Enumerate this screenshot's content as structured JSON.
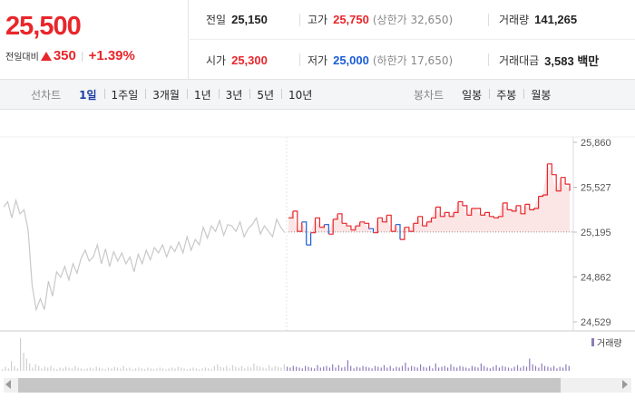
{
  "quote": {
    "price": "25,500",
    "change_label": "전일대비",
    "change_diff": "350",
    "change_rate": "+1.39%",
    "direction": "up"
  },
  "info": {
    "prev_close_label": "전일",
    "prev_close": "25,150",
    "high_label": "고가",
    "high": "25,750",
    "upper_limit": "(상한가 32,650)",
    "volume_label": "거래량",
    "volume": "141,265",
    "open_label": "시가",
    "open": "25,300",
    "low_label": "저가",
    "low": "25,000",
    "lower_limit": "(하한가 17,650)",
    "amount_label": "거래대금",
    "amount": "3,583 백만"
  },
  "line_tabs": {
    "title": "선차트",
    "items": [
      "1일",
      "1주일",
      "3개월",
      "1년",
      "3년",
      "5년",
      "10년"
    ],
    "active": "1일"
  },
  "candle_tabs": {
    "title": "봉차트",
    "items": [
      "일봉",
      "주봉",
      "월봉"
    ]
  },
  "colors": {
    "up": "#e8262b",
    "down": "#1a5cd8",
    "active_tab": "#1d3ea3",
    "prior_day": "#c8c8c8",
    "volume": "#8e7bb8"
  },
  "chart_data": {
    "type": "line",
    "y_ticks": [
      "25,860",
      "25,527",
      "25,195",
      "24,862",
      "24,529"
    ],
    "ylim": [
      24529,
      25860
    ],
    "baseline": 25195,
    "legend": "거래량",
    "series": [
      {
        "values": [
          25380,
          25420,
          25300,
          25430,
          25330,
          25360,
          25210,
          24800,
          24620,
          24700,
          24620,
          24830,
          24720,
          24900,
          24860,
          24940,
          24840,
          24960,
          24890,
          25000,
          25060,
          24980,
          25010,
          25100,
          24960,
          25070,
          24940,
          25050,
          24980,
          25040,
          24960,
          25010,
          24900,
          25030,
          24960,
          25060,
          24990,
          25080,
          25040,
          25100,
          25010,
          25090,
          25050,
          25120,
          25040,
          25160,
          25060,
          25140,
          25100,
          25230,
          25150,
          25240,
          25200,
          25280,
          25170,
          25250,
          25240,
          25200,
          25270,
          25160,
          25220,
          25250,
          25300,
          25180,
          25240,
          25200,
          25160,
          25290,
          25230,
          25190
        ]
      },
      {
        "values": [
          25300,
          25350,
          25200,
          25270,
          25100,
          25190,
          25300,
          25230,
          25250,
          25180,
          25290,
          25330,
          25260,
          25240,
          25210,
          25240,
          25270,
          25260,
          25220,
          25190,
          25300,
          25270,
          25320,
          25200,
          25250,
          25140,
          25230,
          25200,
          25260,
          25310,
          25240,
          25270,
          25300,
          25380,
          25310,
          25340,
          25310,
          25340,
          25420,
          25390,
          25320,
          25370,
          25370,
          25320,
          25340,
          25310,
          25300,
          25310,
          25410,
          25360,
          25350,
          25390,
          25330,
          25400,
          25360,
          25370,
          25460,
          25470,
          25700,
          25620,
          25500,
          25600,
          25550,
          25500
        ]
      }
    ],
    "volume": [
      20,
      50,
      30,
      120,
      60,
      30,
      400,
      220,
      150,
      90,
      40,
      80,
      60,
      30,
      50,
      40,
      60,
      30,
      20,
      40,
      30,
      50,
      40,
      30,
      60,
      40,
      30,
      20,
      30,
      40,
      30,
      50,
      40,
      30,
      20,
      40,
      30,
      50,
      40,
      30,
      60,
      30,
      40,
      20,
      30,
      40,
      30,
      20,
      40,
      30,
      20,
      30,
      40,
      30,
      20,
      30,
      40,
      30,
      50,
      40,
      30,
      20,
      30,
      40,
      30,
      20,
      30,
      40,
      30,
      20,
      60,
      80,
      50,
      40,
      60,
      30,
      70,
      50,
      40,
      60,
      30,
      50,
      40,
      90,
      60,
      50,
      40,
      30,
      70,
      40,
      60,
      50,
      40,
      80,
      50,
      40,
      60,
      50,
      40,
      30,
      60,
      50,
      40,
      30,
      70,
      40,
      50,
      60,
      40,
      80,
      40,
      70,
      40,
      50,
      130,
      60,
      30,
      50,
      40,
      60,
      50,
      40,
      30,
      60,
      50,
      40,
      70,
      40,
      60,
      30,
      50,
      40,
      60,
      100,
      40,
      60,
      50,
      40,
      80,
      50,
      40,
      60,
      30,
      90,
      40,
      50,
      60,
      40,
      80,
      50,
      40,
      60,
      50,
      40,
      30,
      60,
      50,
      40,
      90,
      60,
      40,
      30,
      50,
      70,
      40,
      60,
      50,
      40,
      30,
      50,
      70,
      40,
      60,
      50,
      150,
      80,
      60,
      40,
      90,
      60,
      50,
      40,
      60,
      30,
      50,
      40,
      80,
      60
    ]
  }
}
